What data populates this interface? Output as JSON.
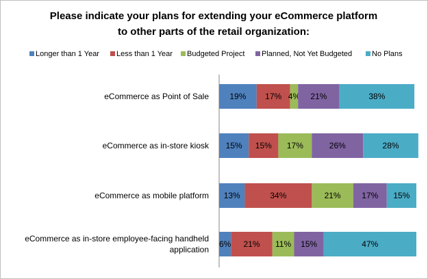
{
  "chart_data": {
    "type": "bar",
    "orientation": "horizontal",
    "stacked": true,
    "title": "Please indicate your plans for extending your eCommerce platform to other parts of the retail organization:",
    "title_lines": [
      "Please indicate your plans for extending your eCommerce platform",
      "to other parts of the retail organization:"
    ],
    "categories": [
      [
        "eCommerce as Point of Sale"
      ],
      [
        "eCommerce as in-store kiosk"
      ],
      [
        "eCommerce as mobile platform"
      ],
      [
        "eCommerce as in-store employee-facing handheld",
        "application"
      ]
    ],
    "series": [
      {
        "name": "Longer than 1 Year",
        "color": "#4f81bd",
        "values": [
          19,
          15,
          13,
          6
        ]
      },
      {
        "name": "Less than 1 Year",
        "color": "#c0504d",
        "values": [
          17,
          15,
          34,
          21
        ]
      },
      {
        "name": "Budgeted Project",
        "color": "#9bbb59",
        "values": [
          4,
          17,
          21,
          11
        ]
      },
      {
        "name": "Planned, Not Yet Budgeted",
        "color": "#8064a2",
        "values": [
          21,
          26,
          17,
          15
        ]
      },
      {
        "name": "No Plans",
        "color": "#4bacc6",
        "values": [
          38,
          28,
          15,
          47
        ]
      }
    ],
    "value_suffix": "%",
    "xlim": [
      0,
      100
    ],
    "legend_position": "top",
    "grid": false
  }
}
